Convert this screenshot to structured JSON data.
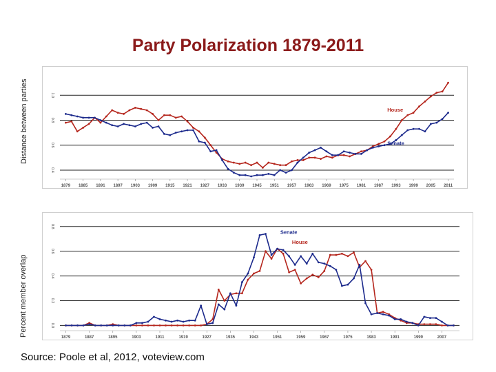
{
  "title": "Party Polarization 1879-2011",
  "source": "Source: Poole et al, 2012, voteview.com",
  "colors": {
    "house": "#b5261d",
    "senate": "#1c2a8c",
    "grid": "#222222",
    "title": "#8b1a1a"
  },
  "chart_data": [
    {
      "type": "line",
      "ylabel": "Distance between parties",
      "ylim": [
        0.35,
        1.2
      ],
      "yticks": [
        0.4,
        0.6,
        0.8,
        1.0
      ],
      "yticklabels": [
        "0.4",
        "0.6",
        "0.8",
        "1.0"
      ],
      "xlim": [
        1877,
        2013
      ],
      "xticks": [
        1879,
        1885,
        1891,
        1897,
        1903,
        1909,
        1915,
        1921,
        1927,
        1933,
        1939,
        1945,
        1951,
        1957,
        1963,
        1969,
        1975,
        1981,
        1987,
        1993,
        1999,
        2005,
        2011
      ],
      "xticklabels": [
        "1879",
        "1885",
        "1891",
        "1897",
        "1903",
        "1909",
        "1915",
        "1921",
        "1927",
        "1933",
        "1939",
        "1945",
        "1951",
        "1957",
        "1963",
        "1969",
        "1975",
        "1981",
        "1987",
        "1993",
        "1999",
        "2005",
        "2011"
      ],
      "series_labels": [
        {
          "name": "House",
          "text": "House",
          "x": 1990,
          "y": 0.87
        },
        {
          "name": "Senate",
          "text": "Senate",
          "x": 1990,
          "y": 0.6
        }
      ],
      "series": [
        {
          "name": "House",
          "x": [
            1879,
            1881,
            1883,
            1885,
            1887,
            1889,
            1891,
            1893,
            1895,
            1897,
            1899,
            1901,
            1903,
            1905,
            1907,
            1909,
            1911,
            1913,
            1915,
            1917,
            1919,
            1921,
            1923,
            1925,
            1927,
            1929,
            1931,
            1933,
            1935,
            1937,
            1939,
            1941,
            1943,
            1945,
            1947,
            1949,
            1951,
            1953,
            1955,
            1957,
            1959,
            1961,
            1963,
            1965,
            1967,
            1969,
            1971,
            1973,
            1975,
            1977,
            1979,
            1981,
            1983,
            1985,
            1987,
            1989,
            1991,
            1993,
            1995,
            1997,
            1999,
            2001,
            2003,
            2005,
            2007,
            2009,
            2011
          ],
          "values": [
            0.78,
            0.79,
            0.71,
            0.74,
            0.77,
            0.82,
            0.78,
            0.83,
            0.88,
            0.86,
            0.85,
            0.88,
            0.9,
            0.89,
            0.88,
            0.85,
            0.8,
            0.84,
            0.84,
            0.82,
            0.83,
            0.79,
            0.74,
            0.71,
            0.66,
            0.6,
            0.54,
            0.49,
            0.47,
            0.46,
            0.45,
            0.46,
            0.44,
            0.46,
            0.42,
            0.46,
            0.45,
            0.44,
            0.44,
            0.47,
            0.48,
            0.48,
            0.5,
            0.5,
            0.49,
            0.51,
            0.5,
            0.52,
            0.52,
            0.51,
            0.53,
            0.55,
            0.56,
            0.59,
            0.61,
            0.63,
            0.67,
            0.73,
            0.8,
            0.84,
            0.86,
            0.91,
            0.95,
            0.99,
            1.02,
            1.03,
            1.1
          ]
        },
        {
          "name": "Senate",
          "x": [
            1879,
            1881,
            1883,
            1885,
            1887,
            1889,
            1891,
            1893,
            1895,
            1897,
            1899,
            1901,
            1903,
            1905,
            1907,
            1909,
            1911,
            1913,
            1915,
            1917,
            1919,
            1921,
            1923,
            1925,
            1927,
            1929,
            1931,
            1933,
            1935,
            1937,
            1939,
            1941,
            1943,
            1945,
            1947,
            1949,
            1951,
            1953,
            1955,
            1957,
            1959,
            1961,
            1963,
            1965,
            1967,
            1969,
            1971,
            1973,
            1975,
            1977,
            1979,
            1981,
            1983,
            1985,
            1987,
            1989,
            1991,
            1993,
            1995,
            1997,
            1999,
            2001,
            2003,
            2005,
            2007,
            2009,
            2011
          ],
          "values": [
            0.85,
            0.84,
            0.83,
            0.82,
            0.82,
            0.82,
            0.8,
            0.78,
            0.76,
            0.75,
            0.77,
            0.76,
            0.75,
            0.77,
            0.78,
            0.74,
            0.75,
            0.69,
            0.68,
            0.7,
            0.71,
            0.72,
            0.72,
            0.63,
            0.62,
            0.55,
            0.56,
            0.48,
            0.41,
            0.38,
            0.36,
            0.36,
            0.35,
            0.36,
            0.36,
            0.37,
            0.36,
            0.4,
            0.38,
            0.4,
            0.46,
            0.5,
            0.54,
            0.56,
            0.58,
            0.55,
            0.52,
            0.52,
            0.55,
            0.54,
            0.53,
            0.53,
            0.56,
            0.58,
            0.59,
            0.6,
            0.61,
            0.64,
            0.68,
            0.72,
            0.73,
            0.73,
            0.71,
            0.77,
            0.78,
            0.81,
            0.86
          ]
        }
      ]
    },
    {
      "type": "line",
      "ylabel": "Percent member overlap",
      "ylim": [
        -0.02,
        0.86
      ],
      "yticks": [
        0.0,
        0.2,
        0.4,
        0.6,
        0.8
      ],
      "yticklabels": [
        "0.0",
        "0.2",
        "0.4",
        "0.6",
        "0.8"
      ],
      "xlim": [
        1877,
        2013
      ],
      "xticks": [
        1879,
        1887,
        1895,
        1903,
        1911,
        1919,
        1927,
        1935,
        1943,
        1951,
        1959,
        1967,
        1975,
        1983,
        1991,
        1999,
        2007
      ],
      "xticklabels": [
        "1879",
        "1887",
        "1895",
        "1903",
        "1911",
        "1919",
        "1927",
        "1935",
        "1943",
        "1951",
        "1959",
        "1967",
        "1975",
        "1983",
        "1991",
        "1999",
        "2007"
      ],
      "series_labels": [
        {
          "name": "Senate",
          "text": "Senate",
          "x": 1952,
          "y": 0.74
        },
        {
          "name": "House",
          "text": "House",
          "x": 1956,
          "y": 0.66
        }
      ],
      "series": [
        {
          "name": "House",
          "x": [
            1879,
            1881,
            1883,
            1885,
            1887,
            1889,
            1891,
            1893,
            1895,
            1897,
            1899,
            1901,
            1903,
            1905,
            1907,
            1909,
            1911,
            1913,
            1915,
            1917,
            1919,
            1921,
            1923,
            1925,
            1927,
            1929,
            1931,
            1933,
            1935,
            1937,
            1939,
            1941,
            1943,
            1945,
            1947,
            1949,
            1951,
            1953,
            1955,
            1957,
            1959,
            1961,
            1963,
            1965,
            1967,
            1969,
            1971,
            1973,
            1975,
            1977,
            1979,
            1981,
            1983,
            1985,
            1987,
            1989,
            1991,
            1993,
            1995,
            1997,
            1999,
            2001,
            2003,
            2005,
            2007,
            2009,
            2011
          ],
          "values": [
            0,
            0,
            0,
            0,
            0.02,
            0,
            0,
            0,
            0.01,
            0,
            0,
            0,
            0,
            0,
            0,
            0,
            0,
            0,
            0,
            0,
            0,
            0,
            0,
            0,
            0.01,
            0.05,
            0.29,
            0.2,
            0.25,
            0.26,
            0.26,
            0.37,
            0.42,
            0.44,
            0.6,
            0.54,
            0.62,
            0.58,
            0.43,
            0.45,
            0.34,
            0.38,
            0.41,
            0.39,
            0.44,
            0.57,
            0.57,
            0.58,
            0.56,
            0.59,
            0.47,
            0.52,
            0.45,
            0.1,
            0.11,
            0.09,
            0.06,
            0.04,
            0.02,
            0.02,
            0.01,
            0.01,
            0.01,
            0.01,
            0,
            0,
            0
          ]
        },
        {
          "name": "Senate",
          "x": [
            1879,
            1881,
            1883,
            1885,
            1887,
            1889,
            1891,
            1893,
            1895,
            1897,
            1899,
            1901,
            1903,
            1905,
            1907,
            1909,
            1911,
            1913,
            1915,
            1917,
            1919,
            1921,
            1923,
            1925,
            1927,
            1929,
            1931,
            1933,
            1935,
            1937,
            1939,
            1941,
            1943,
            1945,
            1947,
            1949,
            1951,
            1953,
            1955,
            1957,
            1959,
            1961,
            1963,
            1965,
            1967,
            1969,
            1971,
            1973,
            1975,
            1977,
            1979,
            1981,
            1983,
            1985,
            1987,
            1989,
            1991,
            1993,
            1995,
            1997,
            1999,
            2001,
            2003,
            2005,
            2007,
            2009,
            2011
          ],
          "values": [
            0,
            0,
            0,
            0,
            0.01,
            0,
            0,
            0,
            0,
            0,
            0,
            0,
            0.02,
            0.02,
            0.03,
            0.07,
            0.05,
            0.04,
            0.03,
            0.04,
            0.03,
            0.04,
            0.04,
            0.16,
            0.01,
            0.02,
            0.17,
            0.13,
            0.26,
            0.16,
            0.35,
            0.42,
            0.55,
            0.73,
            0.74,
            0.57,
            0.62,
            0.61,
            0.56,
            0.49,
            0.56,
            0.5,
            0.58,
            0.51,
            0.5,
            0.48,
            0.45,
            0.32,
            0.33,
            0.38,
            0.49,
            0.18,
            0.09,
            0.1,
            0.09,
            0.08,
            0.05,
            0.05,
            0.03,
            0.02,
            0.0,
            0.07,
            0.06,
            0.06,
            0.03,
            0.0,
            0.0
          ]
        }
      ]
    }
  ]
}
